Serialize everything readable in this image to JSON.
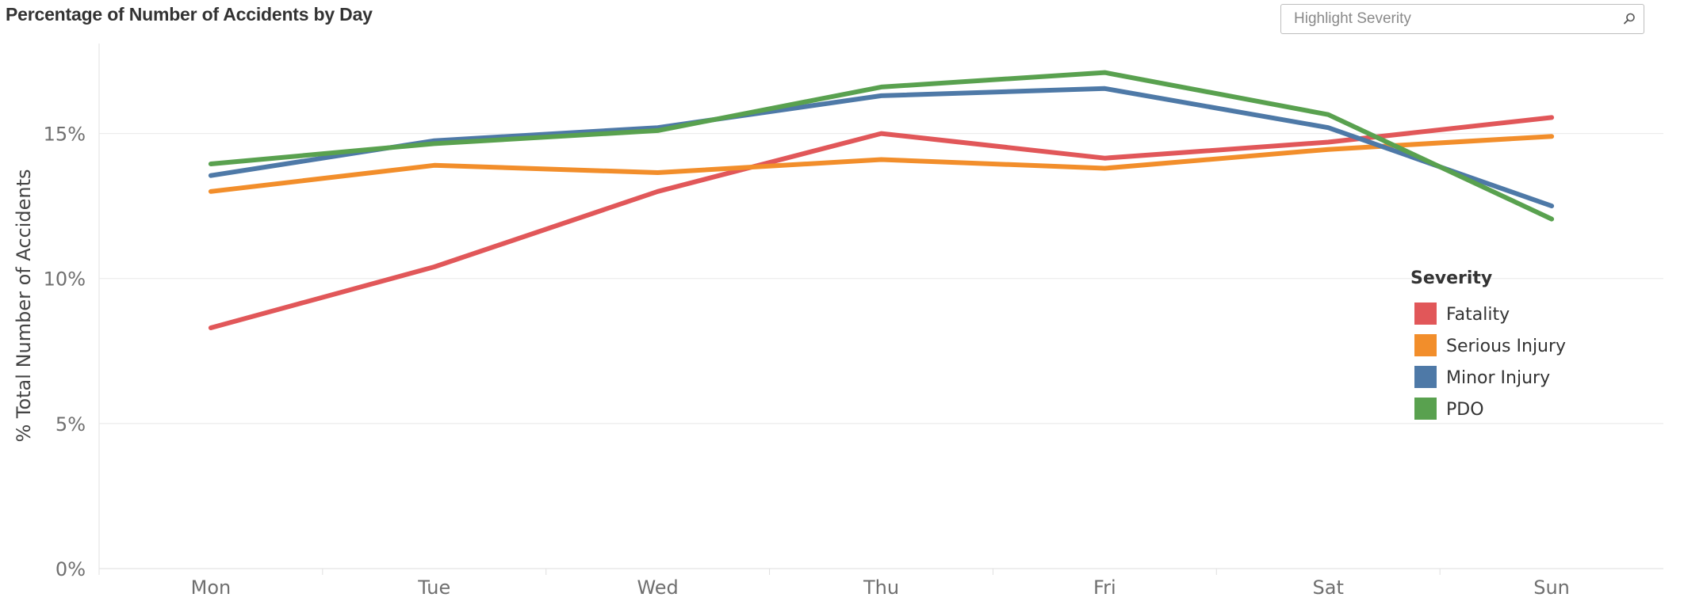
{
  "title": "Percentage of Number of Accidents by Day",
  "highlight": {
    "placeholder": "Highlight Severity",
    "icon": "search-icon"
  },
  "chart_data": {
    "type": "line",
    "title": "Percentage of Number of Accidents by Day",
    "xlabel": "",
    "ylabel": "% Total Number of Accidents",
    "categories": [
      "Mon",
      "Tue",
      "Wed",
      "Thu",
      "Fri",
      "Sat",
      "Sun"
    ],
    "yticks": [
      0,
      5,
      10,
      15
    ],
    "ytick_labels": [
      "0%",
      "5%",
      "10%",
      "15%"
    ],
    "ylim": [
      0,
      18.1
    ],
    "grid": true,
    "legend": {
      "title": "Severity",
      "placement": "right"
    },
    "series": [
      {
        "name": "Fatality",
        "color": "#e15759",
        "values": [
          8.3,
          10.4,
          13.0,
          15.0,
          14.15,
          14.7,
          15.55
        ]
      },
      {
        "name": "Serious Injury",
        "color": "#f28e2b",
        "values": [
          13.0,
          13.9,
          13.65,
          14.1,
          13.8,
          14.45,
          14.9
        ]
      },
      {
        "name": "Minor Injury",
        "color": "#4e79a7",
        "values": [
          13.55,
          14.75,
          15.2,
          16.3,
          16.55,
          15.2,
          12.5
        ]
      },
      {
        "name": "PDO",
        "color": "#59a14f",
        "values": [
          13.95,
          14.65,
          15.1,
          16.6,
          17.1,
          15.65,
          12.05
        ]
      }
    ]
  }
}
